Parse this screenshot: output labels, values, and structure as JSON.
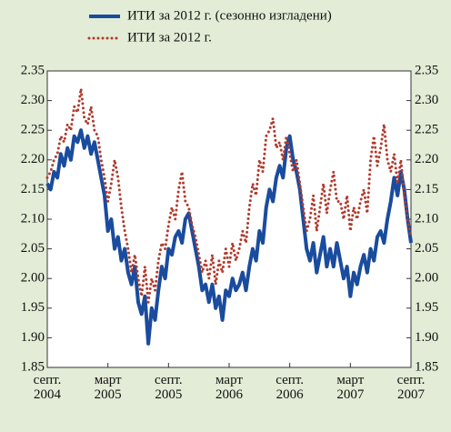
{
  "chart_data": {
    "type": "line",
    "categories": [
      "септ. 2004",
      null,
      null,
      null,
      null,
      null,
      null,
      null,
      null,
      null,
      null,
      null,
      null,
      null,
      null,
      null,
      null,
      null,
      "март 2005",
      null,
      null,
      null,
      null,
      null,
      null,
      null,
      null,
      null,
      null,
      null,
      null,
      null,
      null,
      null,
      null,
      null,
      "септ. 2005",
      null,
      null,
      null,
      null,
      null,
      null,
      null,
      null,
      null,
      null,
      null,
      null,
      null,
      null,
      null,
      null,
      null,
      "март 2006",
      null,
      null,
      null,
      null,
      null,
      null,
      null,
      null,
      null,
      null,
      null,
      null,
      null,
      null,
      null,
      null,
      null,
      "септ. 2006",
      null,
      null,
      null,
      null,
      null,
      null,
      null,
      null,
      null,
      null,
      null,
      null,
      null,
      null,
      null,
      null,
      null,
      "март 2007",
      null,
      null,
      null,
      null,
      null,
      null,
      null,
      null,
      null,
      null,
      null,
      null,
      null,
      null,
      null,
      null,
      null,
      "септ. 2007"
    ],
    "series": [
      {
        "name": "ИТИ за 2012 г. (сезонно изгладени)",
        "color": "#1a4c9e",
        "style": "solid",
        "values": [
          2.16,
          2.15,
          2.18,
          2.17,
          2.21,
          2.19,
          2.22,
          2.2,
          2.24,
          2.23,
          2.25,
          2.22,
          2.24,
          2.21,
          2.23,
          2.2,
          2.17,
          2.14,
          2.08,
          2.1,
          2.05,
          2.07,
          2.03,
          2.05,
          2.01,
          1.99,
          2.02,
          1.96,
          1.94,
          1.97,
          1.89,
          1.95,
          1.93,
          1.98,
          2.02,
          2.0,
          2.05,
          2.04,
          2.07,
          2.08,
          2.06,
          2.1,
          2.11,
          2.08,
          2.05,
          2.02,
          1.98,
          1.99,
          1.96,
          1.99,
          1.95,
          1.97,
          1.93,
          1.98,
          1.97,
          2.0,
          1.98,
          1.99,
          2.01,
          1.98,
          2.02,
          2.05,
          2.03,
          2.08,
          2.06,
          2.12,
          2.15,
          2.13,
          2.17,
          2.19,
          2.17,
          2.22,
          2.24,
          2.2,
          2.18,
          2.15,
          2.1,
          2.05,
          2.03,
          2.06,
          2.01,
          2.04,
          2.07,
          2.02,
          2.05,
          2.02,
          2.06,
          2.03,
          2.0,
          2.02,
          1.97,
          2.01,
          1.99,
          2.02,
          2.04,
          2.01,
          2.05,
          2.03,
          2.07,
          2.08,
          2.06,
          2.1,
          2.13,
          2.17,
          2.14,
          2.18,
          2.15,
          2.1,
          2.06
        ]
      },
      {
        "name": "ИТИ за 2012 г.",
        "color": "#b23a2c",
        "style": "dotted",
        "values": [
          2.17,
          2.18,
          2.2,
          2.21,
          2.24,
          2.23,
          2.26,
          2.25,
          2.29,
          2.28,
          2.32,
          2.27,
          2.26,
          2.29,
          2.25,
          2.24,
          2.2,
          2.17,
          2.13,
          2.16,
          2.2,
          2.17,
          2.12,
          2.08,
          2.05,
          2.01,
          2.04,
          2.0,
          1.97,
          2.02,
          1.96,
          2.0,
          1.98,
          2.03,
          2.06,
          2.05,
          2.09,
          2.12,
          2.1,
          2.15,
          2.18,
          2.13,
          2.12,
          2.09,
          2.07,
          2.04,
          2.01,
          2.03,
          2.0,
          2.04,
          1.99,
          2.03,
          2.01,
          2.05,
          2.02,
          2.06,
          2.03,
          2.05,
          2.08,
          2.06,
          2.12,
          2.16,
          2.14,
          2.2,
          2.18,
          2.24,
          2.25,
          2.27,
          2.22,
          2.23,
          2.2,
          2.24,
          2.21,
          2.18,
          2.2,
          2.16,
          2.12,
          2.08,
          2.1,
          2.14,
          2.08,
          2.12,
          2.16,
          2.11,
          2.15,
          2.18,
          2.13,
          2.13,
          2.1,
          2.14,
          2.08,
          2.12,
          2.1,
          2.13,
          2.15,
          2.11,
          2.2,
          2.24,
          2.19,
          2.22,
          2.26,
          2.2,
          2.18,
          2.21,
          2.16,
          2.2,
          2.14,
          2.1,
          2.07
        ]
      }
    ],
    "ylim": [
      1.85,
      2.35
    ],
    "yticks": [
      1.85,
      {
        "value": 1.9,
        "label": "1.90"
      },
      1.95,
      {
        "value": 2.0,
        "label": "2.00"
      },
      2.05,
      {
        "value": 2.1,
        "label": "2.10"
      },
      2.15,
      {
        "value": 2.2,
        "label": "2.20"
      },
      2.25,
      {
        "value": 2.3,
        "label": "2.30"
      },
      2.35
    ],
    "y2lim": [
      1.85,
      2.35
    ],
    "y2ticks": [
      1.85,
      {
        "value": 1.9,
        "label": "1.90"
      },
      1.95,
      {
        "value": 2.0,
        "label": "2.00"
      },
      2.05,
      {
        "value": 2.1,
        "label": "2.10"
      },
      2.15,
      {
        "value": 2.2,
        "label": "2.20"
      },
      2.25,
      {
        "value": 2.3,
        "label": "2.30"
      },
      2.35
    ]
  }
}
